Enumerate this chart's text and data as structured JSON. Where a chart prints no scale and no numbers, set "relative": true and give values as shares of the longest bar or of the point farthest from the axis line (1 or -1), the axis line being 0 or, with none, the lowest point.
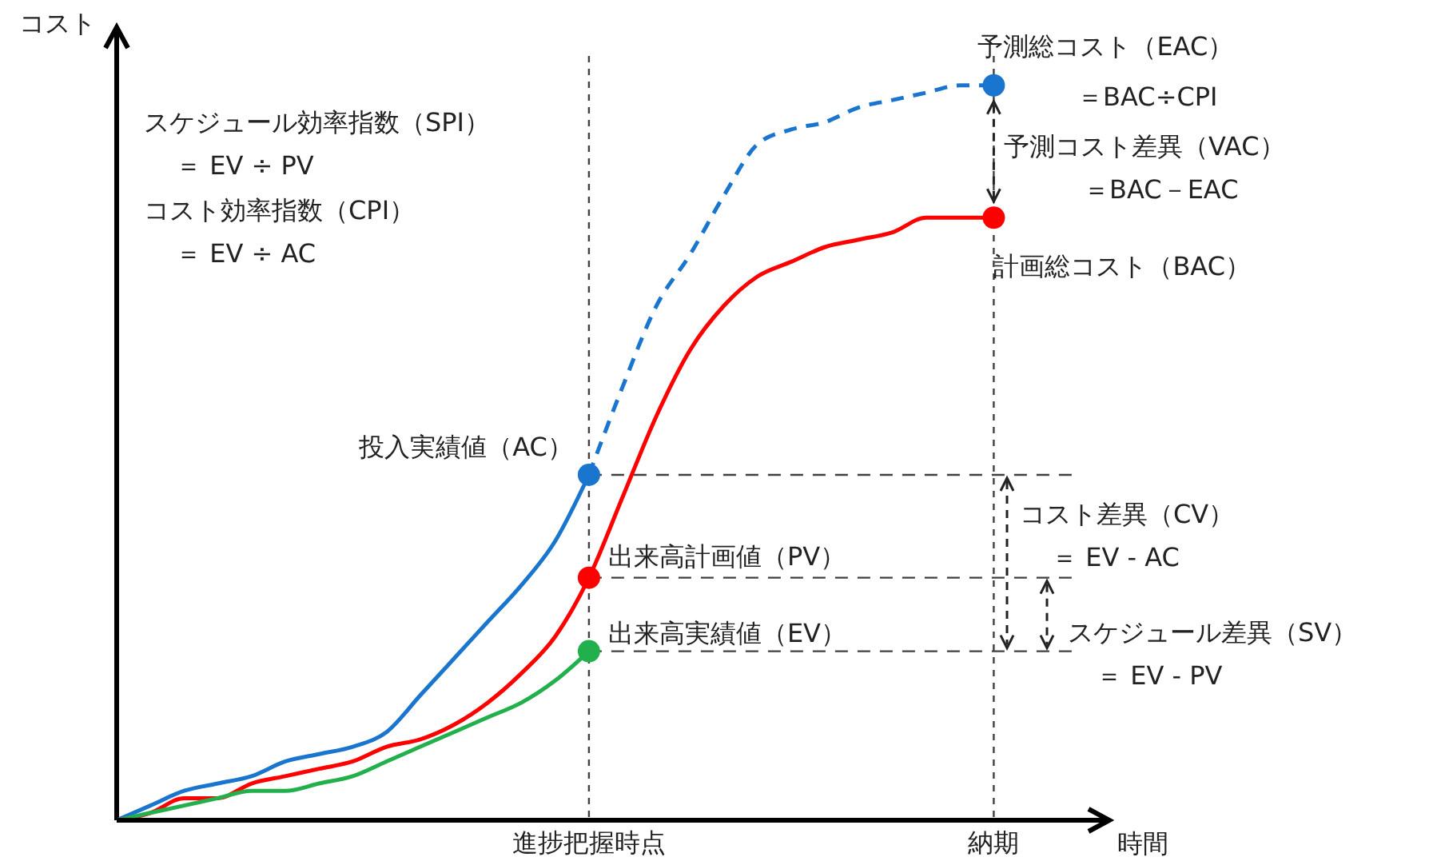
{
  "chart_data": {
    "type": "line",
    "relative": true,
    "xlabel": "時間",
    "ylabel": "コスト",
    "categories": [
      null,
      null,
      null,
      null,
      null,
      null,
      null,
      null,
      null,
      null,
      null,
      null,
      null,
      null,
      "進捗把握時点",
      null,
      null,
      null,
      null,
      null,
      null,
      null,
      null,
      null,
      null,
      null,
      "納期"
    ],
    "series": [
      {
        "color": "#1a75cf",
        "line_style": "solid",
        "values": [
          0,
          0.02,
          0.04,
          0.05,
          0.06,
          0.08,
          0.09,
          0.1,
          0.12,
          0.17,
          0.22,
          0.27,
          0.32,
          0.38,
          0.47,
          null,
          null,
          null,
          null,
          null,
          null,
          null,
          null,
          null,
          null,
          null,
          null
        ]
      },
      {
        "color": "#1a75cf",
        "line_style": "dashed",
        "values": [
          null,
          null,
          null,
          null,
          null,
          null,
          null,
          null,
          null,
          null,
          null,
          null,
          null,
          null,
          0.47,
          0.59,
          0.7,
          0.77,
          0.85,
          0.92,
          0.94,
          0.95,
          0.97,
          0.98,
          0.99,
          1,
          1
        ]
      },
      {
        "color": "#ff0000",
        "line_style": "solid",
        "values": [
          0,
          0.01,
          0.03,
          0.03,
          0.05,
          0.06,
          0.07,
          0.08,
          0.1,
          0.11,
          0.13,
          0.16,
          0.2,
          0.25,
          0.33,
          0.44,
          0.55,
          0.64,
          0.7,
          0.74,
          0.76,
          0.78,
          0.79,
          0.8,
          0.82,
          0.82,
          0.82
        ]
      },
      {
        "color": "#22b04c",
        "line_style": "solid",
        "values": [
          0,
          0.01,
          0.02,
          0.03,
          0.04,
          0.04,
          0.05,
          0.06,
          0.08,
          0.1,
          0.12,
          0.14,
          0.16,
          0.19,
          0.23,
          null,
          null,
          null,
          null,
          null,
          null,
          null,
          null,
          null,
          null,
          null,
          null
        ]
      },
      {
        "type": "scatter",
        "color": "#1a75cf",
        "x": [
          "進捗把握時点",
          "納期"
        ],
        "values": [
          0.47,
          1
        ]
      },
      {
        "type": "scatter",
        "color": "#ff0000",
        "x": [
          "進捗把握時点",
          "納期"
        ],
        "values": [
          0.33,
          0.82
        ]
      },
      {
        "type": "scatter",
        "color": "#22b04c",
        "x": [
          "進捗把握時点"
        ],
        "values": [
          0.23
        ]
      }
    ],
    "grid": "x",
    "ref_lines": [
      {
        "axis": "y",
        "value": 0.47,
        "line_style": "dashed",
        "color": "#404040"
      },
      {
        "axis": "y",
        "value": 0.33,
        "line_style": "dashed",
        "color": "#404040"
      },
      {
        "axis": "y",
        "value": 0.23,
        "line_style": "dashed",
        "color": "#404040"
      }
    ],
    "annotations": [
      "スケジュール効率指数（SPI）",
      "＝ EV ÷ PV",
      "コスト効率指数（CPI）",
      "＝ EV ÷ AC",
      {
        "text": "投入実績値（AC）",
        "x": "進捗把握時点",
        "y": 0.47
      },
      {
        "text": "出来高計画値（PV）",
        "x": "進捗把握時点",
        "y": 0.33
      },
      {
        "text": "出来高実績値（EV）",
        "x": "進捗把握時点",
        "y": 0.23
      },
      {
        "text": "予測総コスト（EAC）",
        "x": "納期",
        "y": 1
      },
      "＝BAC÷CPI",
      "予測コスト差異（VAC）",
      "＝BAC－EAC",
      {
        "text": "計画総コスト（BAC）",
        "x": "納期",
        "y": 0.82
      },
      "コスト差異（CV）",
      "＝ EV - AC",
      "スケジュール差異（SV）",
      "＝ EV - PV"
    ]
  }
}
